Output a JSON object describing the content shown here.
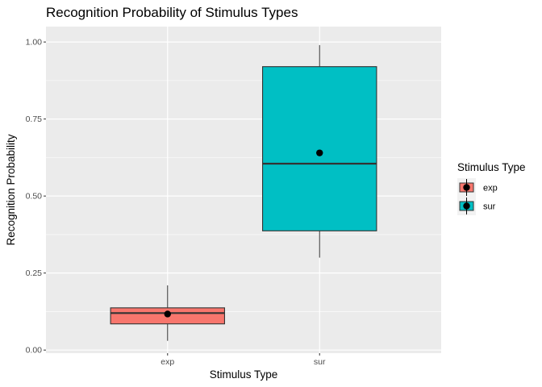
{
  "chart_data": {
    "type": "box",
    "title": "Recognition Probability of Stimulus Types",
    "xlabel": "Stimulus Type",
    "ylabel": "Recognition Probability",
    "categories": [
      "exp",
      "sur"
    ],
    "ylim": [
      -0.01,
      1.05
    ],
    "yticks": [
      0.0,
      0.25,
      0.5,
      0.75,
      1.0
    ],
    "ytick_labels": [
      "0.00",
      "0.25",
      "0.50",
      "0.75",
      "1.00"
    ],
    "grid": true,
    "legend": {
      "title": "Stimulus Type",
      "position": "right",
      "entries": [
        "exp",
        "sur"
      ]
    },
    "boxes": [
      {
        "category": "exp",
        "fill": "#F8766D",
        "whisker_low": 0.03,
        "q1": 0.085,
        "median": 0.12,
        "q3": 0.137,
        "whisker_high": 0.21,
        "mean": 0.117
      },
      {
        "category": "sur",
        "fill": "#00BFC4",
        "whisker_low": 0.3,
        "q1": 0.387,
        "median": 0.605,
        "q3": 0.92,
        "whisker_high": 0.99,
        "mean": 0.64
      }
    ],
    "colors": {
      "panel_bg": "#EBEBEB",
      "grid": "#FFFFFF",
      "box_border": "#333333",
      "mean_point": "#000000"
    }
  }
}
